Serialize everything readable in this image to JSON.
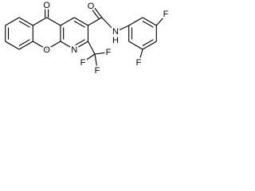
{
  "atoms": [
    {
      "label": "O"
    },
    {
      "label": "O"
    },
    {
      "label": "N"
    },
    {
      "label": "O"
    },
    {
      "label": "N"
    },
    {
      "label": "H"
    },
    {
      "label": "F"
    },
    {
      "label": "F"
    },
    {
      "label": "F"
    },
    {
      "label": "F"
    },
    {
      "label": "F"
    }
  ]
}
